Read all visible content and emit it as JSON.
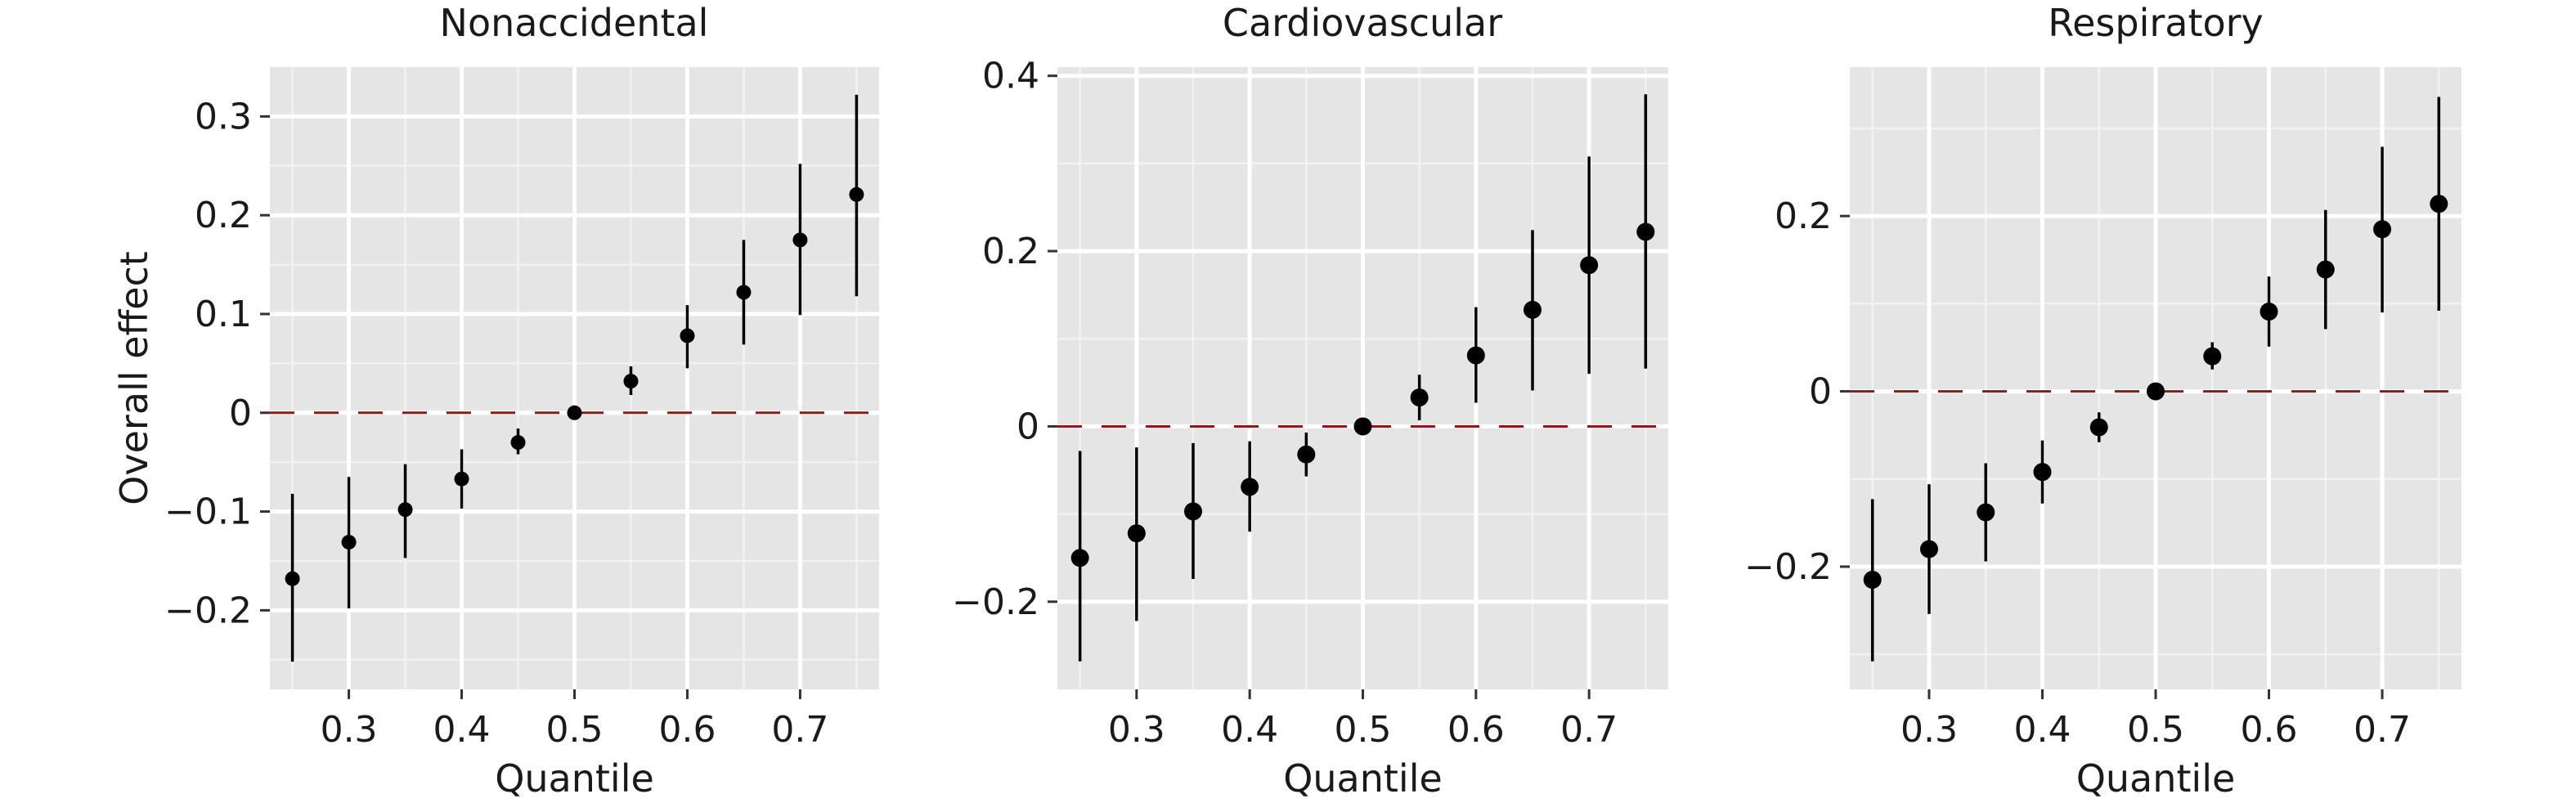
{
  "chart_data": [
    {
      "type": "scatter",
      "title": "Nonaccidental",
      "xlabel": "Quantile",
      "ylabel": "Overall effect",
      "xlim": [
        0.23,
        0.77
      ],
      "ylim": [
        -0.28,
        0.35
      ],
      "xticks": [
        0.3,
        0.4,
        0.5,
        0.6,
        0.7
      ],
      "xtick_labels": [
        "0.3",
        "0.4",
        "0.5",
        "0.6",
        "0.7"
      ],
      "yticks": [
        -0.2,
        -0.1,
        0,
        0.1,
        0.2,
        0.3
      ],
      "ytick_labels": [
        "−0.2",
        "−0.1",
        "0",
        "0.1",
        "0.2",
        "0.3"
      ],
      "reference_line": {
        "y": 0,
        "style": "dashed",
        "color": "#8b1a1a"
      },
      "grid": true,
      "series": [
        {
          "x": [
            0.25,
            0.3,
            0.35,
            0.4,
            0.45,
            0.5,
            0.55,
            0.6,
            0.65,
            0.7,
            0.75
          ],
          "y": [
            -0.168,
            -0.131,
            -0.098,
            -0.067,
            -0.03,
            0.0,
            0.032,
            0.078,
            0.122,
            0.175,
            0.221
          ],
          "lower": [
            -0.252,
            -0.198,
            -0.147,
            -0.097,
            -0.042,
            -0.004,
            0.018,
            0.045,
            0.069,
            0.099,
            0.118
          ],
          "upper": [
            -0.082,
            -0.065,
            -0.052,
            -0.037,
            -0.016,
            0.004,
            0.047,
            0.109,
            0.175,
            0.252,
            0.322
          ]
        }
      ]
    },
    {
      "type": "scatter",
      "title": "Cardiovascular",
      "xlabel": "Quantile",
      "ylabel": "",
      "xlim": [
        0.23,
        0.77
      ],
      "ylim": [
        -0.3,
        0.41
      ],
      "xticks": [
        0.3,
        0.4,
        0.5,
        0.6,
        0.7
      ],
      "xtick_labels": [
        "0.3",
        "0.4",
        "0.5",
        "0.6",
        "0.7"
      ],
      "yticks": [
        -0.2,
        0,
        0.2,
        0.4
      ],
      "ytick_labels": [
        "−0.2",
        "0",
        "0.2",
        "0.4"
      ],
      "reference_line": {
        "y": 0,
        "style": "dashed",
        "color": "#8b1a1a"
      },
      "grid": true,
      "series": [
        {
          "x": [
            0.25,
            0.3,
            0.35,
            0.4,
            0.45,
            0.5,
            0.55,
            0.6,
            0.65,
            0.7,
            0.75
          ],
          "y": [
            -0.15,
            -0.122,
            -0.097,
            -0.069,
            -0.032,
            0.0,
            0.033,
            0.081,
            0.133,
            0.184,
            0.222
          ],
          "lower": [
            -0.268,
            -0.222,
            -0.174,
            -0.12,
            -0.057,
            -0.003,
            0.007,
            0.027,
            0.041,
            0.06,
            0.066
          ],
          "upper": [
            -0.028,
            -0.024,
            -0.019,
            -0.017,
            -0.007,
            0.003,
            0.059,
            0.136,
            0.224,
            0.308,
            0.379
          ]
        }
      ]
    },
    {
      "type": "scatter",
      "title": "Respiratory",
      "xlabel": "Quantile",
      "ylabel": "",
      "xlim": [
        0.23,
        0.77
      ],
      "ylim": [
        -0.34,
        0.37
      ],
      "xticks": [
        0.3,
        0.4,
        0.5,
        0.6,
        0.7
      ],
      "xtick_labels": [
        "0.3",
        "0.4",
        "0.5",
        "0.6",
        "0.7"
      ],
      "yticks": [
        -0.2,
        0,
        0.2
      ],
      "ytick_labels": [
        "−0.2",
        "0",
        "0.2"
      ],
      "reference_line": {
        "y": 0,
        "style": "dashed",
        "color": "#8b1a1a"
      },
      "grid": true,
      "series": [
        {
          "x": [
            0.25,
            0.3,
            0.35,
            0.4,
            0.45,
            0.5,
            0.55,
            0.6,
            0.65,
            0.7,
            0.75
          ],
          "y": [
            -0.215,
            -0.18,
            -0.138,
            -0.092,
            -0.041,
            0.0,
            0.04,
            0.091,
            0.139,
            0.185,
            0.214
          ],
          "lower": [
            -0.308,
            -0.254,
            -0.194,
            -0.128,
            -0.058,
            -0.004,
            0.025,
            0.051,
            0.071,
            0.09,
            0.092
          ],
          "upper": [
            -0.123,
            -0.106,
            -0.082,
            -0.056,
            -0.024,
            0.004,
            0.056,
            0.131,
            0.207,
            0.279,
            0.336
          ]
        }
      ]
    }
  ]
}
